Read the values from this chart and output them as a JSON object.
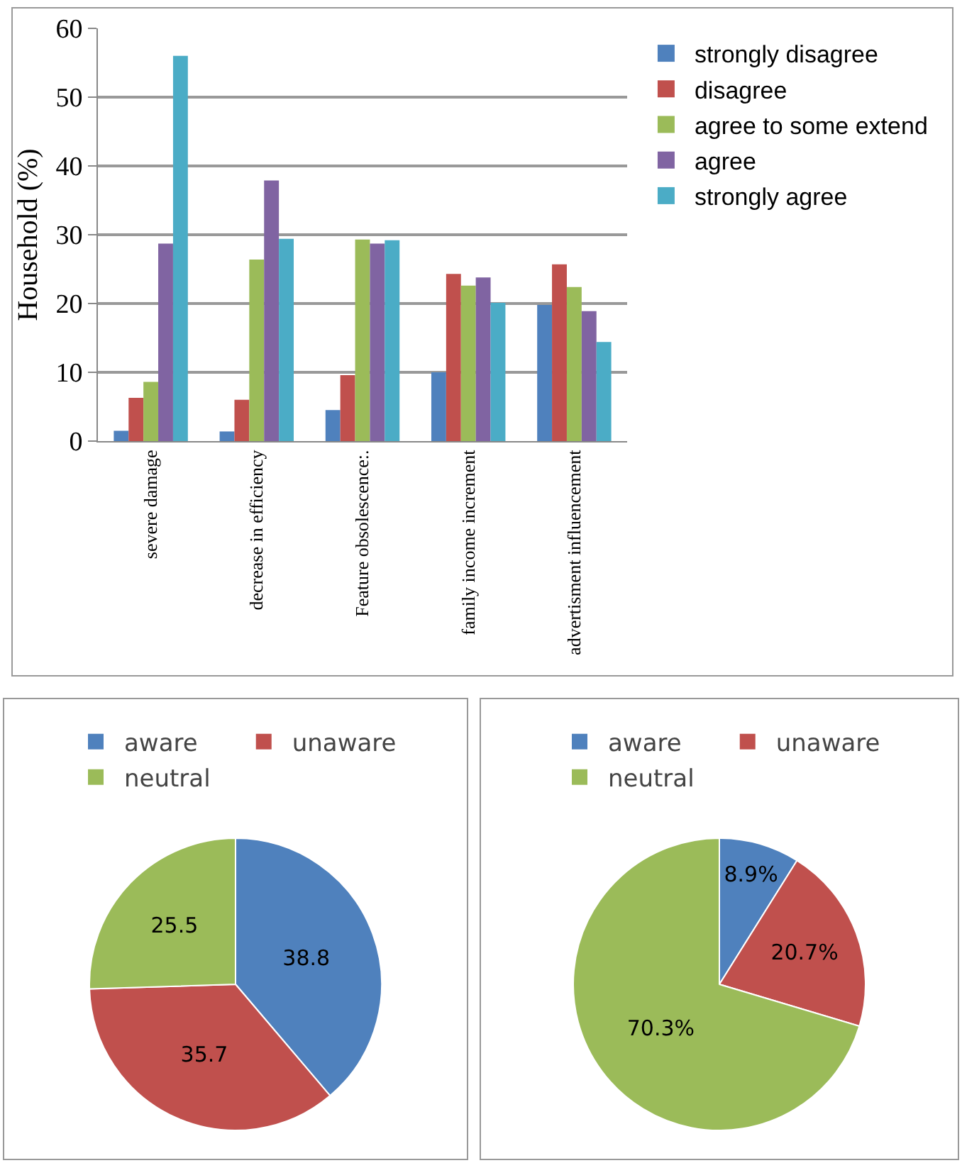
{
  "chart_data": [
    {
      "type": "bar",
      "ylabel": "Household (%)",
      "categories": [
        "severe damage",
        "decrease in efficiency",
        "Feature obsolescence:.",
        "family income increment",
        "advertisment influencement"
      ],
      "series": [
        {
          "name": "strongly disagree",
          "color": "#4f81bd",
          "values": [
            1.5,
            1.4,
            4.5,
            10.0,
            19.8
          ]
        },
        {
          "name": "disagree",
          "color": "#c0504d",
          "values": [
            6.3,
            6.0,
            9.6,
            24.3,
            25.7
          ]
        },
        {
          "name": "agree to some extend",
          "color": "#9bbb59",
          "values": [
            8.6,
            26.4,
            29.3,
            22.6,
            22.4
          ]
        },
        {
          "name": "agree",
          "color": "#8064a2",
          "values": [
            28.7,
            37.9,
            28.7,
            23.8,
            18.9
          ]
        },
        {
          "name": "strongly agree",
          "color": "#4bacc6",
          "values": [
            56.0,
            29.4,
            29.2,
            20.1,
            14.4
          ]
        }
      ],
      "ylim": [
        0,
        60
      ],
      "yticks": [
        0,
        10,
        20,
        30,
        40,
        50,
        60
      ],
      "grid": "y",
      "legend": "right"
    },
    {
      "type": "pie",
      "categories": [
        "aware",
        "unaware",
        "neutral"
      ],
      "values": [
        38.8,
        35.7,
        25.5
      ],
      "colors": [
        "#4f81bd",
        "#c0504d",
        "#9bbb59"
      ],
      "data_labels": true,
      "legend": "top"
    },
    {
      "type": "pie",
      "categories": [
        "aware",
        "unaware",
        "neutral"
      ],
      "values": [
        8.9,
        20.7,
        70.3
      ],
      "colors": [
        "#4f81bd",
        "#c0504d",
        "#9bbb59"
      ],
      "value_labels": [
        "8.9%",
        "20.7%",
        "70.3%"
      ],
      "legend": "top"
    }
  ]
}
